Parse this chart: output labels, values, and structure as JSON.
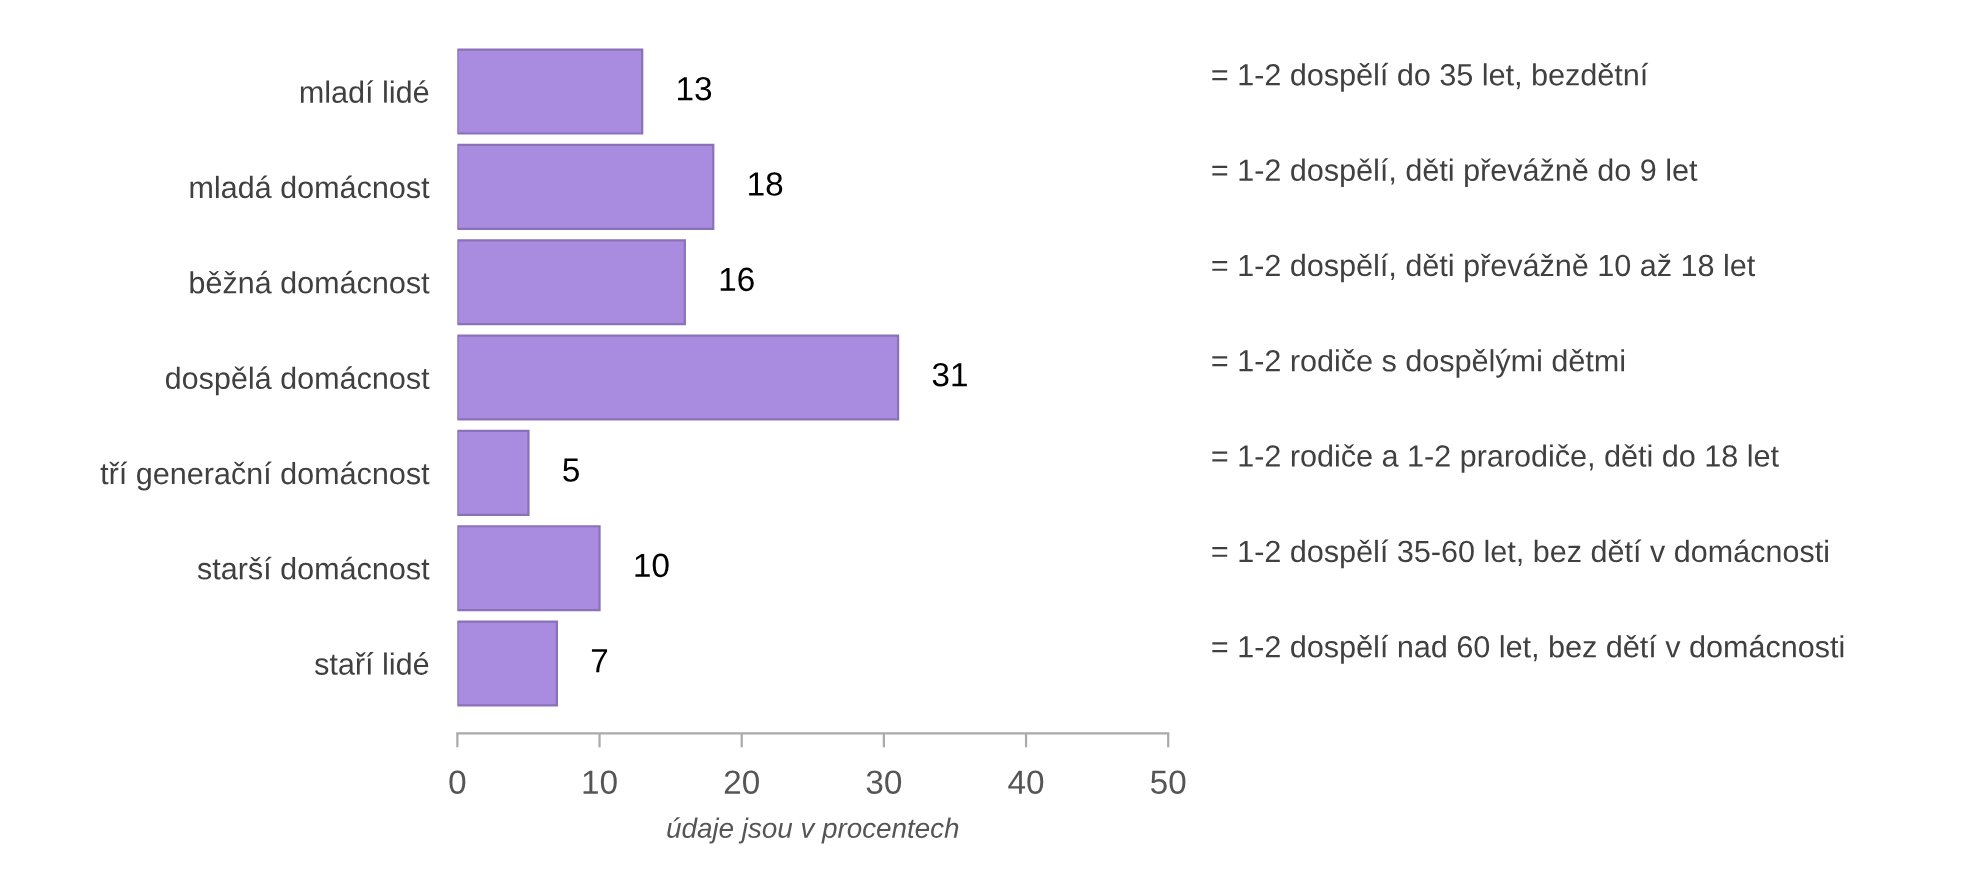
{
  "chart_data": {
    "type": "bar",
    "orientation": "horizontal",
    "categories": [
      "mladí lidé",
      "mladá domácnost",
      "běžná domácnost",
      "dospělá domácnost",
      "tří generační domácnost",
      "starší domácnost",
      "staří lidé"
    ],
    "values": [
      13,
      18,
      16,
      31,
      5,
      10,
      7
    ],
    "color": "#a98be0",
    "data_labels": true,
    "xlim": [
      0,
      50
    ],
    "xticks": [
      0,
      10,
      20,
      30,
      40,
      50
    ],
    "xlabel": "údaje jsou v procentech",
    "grid": false,
    "legend": false,
    "annotations": [
      "= 1-2 dospělí do 35 let, bezdětní",
      "= 1-2 dospělí, děti převážně do 9 let",
      "= 1-2 dospělí, děti převážně 10 až 18 let",
      "= 1-2 rodiče s dospělými dětmi",
      "= 1-2 rodiče a 1-2 prarodiče, děti do 18 let",
      "= 1-2 dospělí 35-60 let, bez dětí v domácnosti",
      "= 1-2 dospělí nad 60 let, bez dětí v domácnosti"
    ]
  }
}
